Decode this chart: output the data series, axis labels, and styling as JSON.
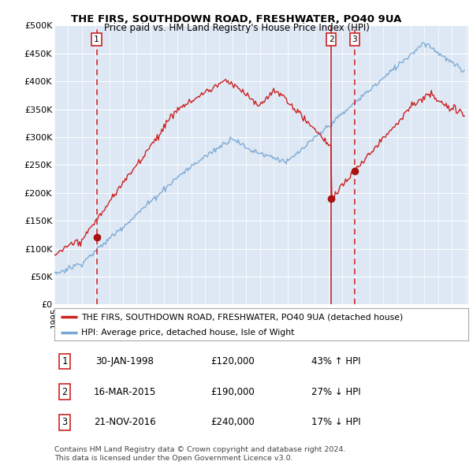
{
  "title1": "THE FIRS, SOUTHDOWN ROAD, FRESHWATER, PO40 9UA",
  "title2": "Price paid vs. HM Land Registry's House Price Index (HPI)",
  "yticks": [
    0,
    50000,
    100000,
    150000,
    200000,
    250000,
    300000,
    350000,
    400000,
    450000,
    500000
  ],
  "ytick_labels": [
    "£0",
    "£50K",
    "£100K",
    "£150K",
    "£200K",
    "£250K",
    "£300K",
    "£350K",
    "£400K",
    "£450K",
    "£500K"
  ],
  "plot_bg_color": "#dde8f4",
  "grid_color": "#ffffff",
  "hpi_line_color": "#7aa8d4",
  "price_line_color": "#cc2222",
  "dashed_line_color": "#cc2222",
  "sale_marker_color": "#aa1111",
  "sale1_year": 1998.08,
  "sale1_price": 120000,
  "sale2_year": 2015.21,
  "sale2_price": 190000,
  "sale3_year": 2016.9,
  "sale3_price": 240000,
  "footnote1": "Contains HM Land Registry data © Crown copyright and database right 2024.",
  "footnote2": "This data is licensed under the Open Government Licence v3.0.",
  "legend1": "THE FIRS, SOUTHDOWN ROAD, FRESHWATER, PO40 9UA (detached house)",
  "legend2": "HPI: Average price, detached house, Isle of Wight",
  "table": [
    {
      "num": "1",
      "date": "30-JAN-1998",
      "price": "£120,000",
      "pct": "43% ↑ HPI"
    },
    {
      "num": "2",
      "date": "16-MAR-2015",
      "price": "£190,000",
      "pct": "27% ↓ HPI"
    },
    {
      "num": "3",
      "date": "21-NOV-2016",
      "price": "£240,000",
      "pct": "17% ↓ HPI"
    }
  ]
}
